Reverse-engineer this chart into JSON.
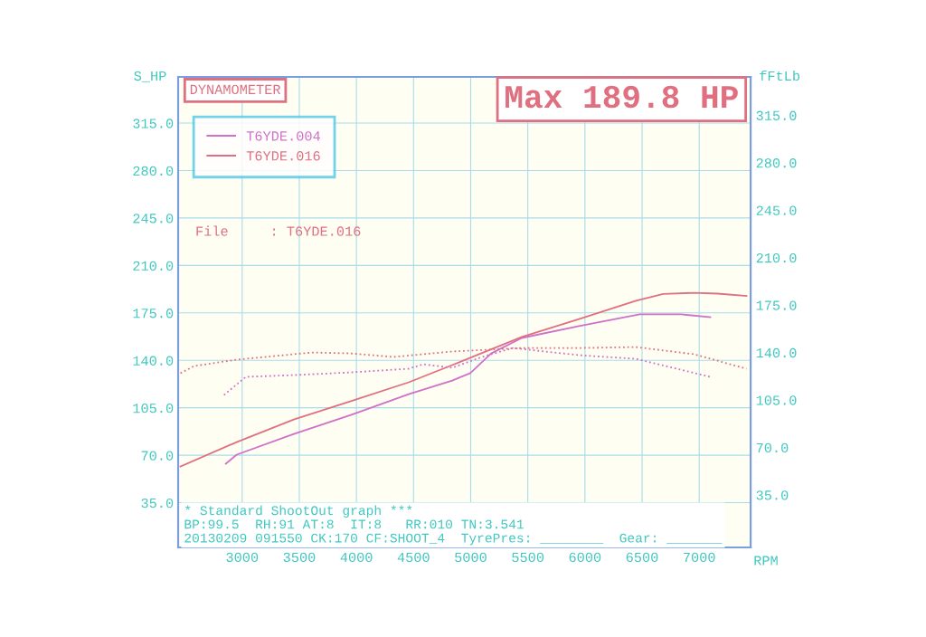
{
  "chart_data": {
    "type": "line",
    "title": "DYNAMOMETER",
    "xlabel": "RPM",
    "ylabel": "S_HP",
    "y2label": "fFtLb",
    "xlim": [
      2440,
      7450
    ],
    "ylim": [
      2,
      349
    ],
    "y2lim": [
      2,
      349
    ],
    "xticks": [
      3000,
      3500,
      4000,
      4500,
      5000,
      5500,
      6000,
      6500,
      7000
    ],
    "yticks": [
      {
        "value": 35,
        "label": "35.0"
      },
      {
        "value": 70,
        "label": "70.0"
      },
      {
        "value": 105,
        "label": "105.0"
      },
      {
        "value": 140,
        "label": "140.0"
      },
      {
        "value": 175,
        "label": "175.0"
      },
      {
        "value": 210,
        "label": "210.0"
      },
      {
        "value": 245,
        "label": "245.0"
      },
      {
        "value": 280,
        "label": "280.0"
      },
      {
        "value": 315,
        "label": "315.0"
      }
    ],
    "y2ticks": [
      {
        "value": 35,
        "label": "35.0"
      },
      {
        "value": 70,
        "label": "70.0"
      },
      {
        "value": 105,
        "label": "105.0"
      },
      {
        "value": 140,
        "label": "140.0"
      },
      {
        "value": 175,
        "label": "175.0"
      },
      {
        "value": 210,
        "label": "210.0"
      },
      {
        "value": 245,
        "label": "245.0"
      },
      {
        "value": 280,
        "label": "280.0"
      },
      {
        "value": 315,
        "label": "315.0"
      }
    ],
    "grid": true,
    "legend": "top left",
    "series": [
      {
        "name": "T6YDE.004",
        "color": "#d070c8",
        "line_style": "solid",
        "x": [
          2857,
          2952,
          3452,
          3951,
          4458,
          4838,
          4997,
          5179,
          5448,
          5948,
          6479,
          6843,
          7097
        ],
        "values": [
          63.7,
          70.4,
          85.7,
          99.7,
          115.1,
          125.1,
          130.5,
          145.1,
          156.5,
          165.2,
          173.9,
          173.9,
          171.8
        ]
      },
      {
        "name": "T6YDE.016",
        "color": "#e07080",
        "line_style": "solid",
        "x": [
          2460,
          2952,
          3452,
          3951,
          4458,
          4838,
          5448,
          5948,
          6447,
          6685,
          6954,
          7160,
          7414
        ],
        "values": [
          61.7,
          79.7,
          96.4,
          109.8,
          123.8,
          136.5,
          157.2,
          170.5,
          183.9,
          188.9,
          189.8,
          189.2,
          187.5
        ]
      },
      {
        "color": "#d070c8",
        "line_style": "dotted",
        "x": [
          2841,
          3032,
          3452,
          3951,
          4458,
          4585,
          4838,
          5100,
          5369,
          5948,
          6447,
          7097
        ],
        "values": [
          114.4,
          127.8,
          129.1,
          131.1,
          133.8,
          137.1,
          134.5,
          142.5,
          149.1,
          143.8,
          141.1,
          127.8
        ]
      },
      {
        "color": "#e07080",
        "line_style": "dotted",
        "x": [
          2460,
          2580,
          2952,
          3452,
          3610,
          3951,
          4323,
          4838,
          5448,
          5948,
          6447,
          6954,
          7414
        ],
        "values": [
          130.5,
          135.8,
          140.5,
          144.5,
          145.8,
          145.1,
          142.5,
          146.5,
          149.1,
          149.1,
          149.8,
          144.5,
          133.8
        ]
      }
    ],
    "annotations": [
      "Max 189.8 HP",
      "File     : T6YDE.016",
      "* Standard ShootOut graph ***",
      "BP:99.5  RH:91 AT:8  IT:8   RR:010 TN:3.541",
      "20130209 091550 CK:170 CF:SHOOT_4  TyrePres: ________  Gear: _______"
    ]
  }
}
